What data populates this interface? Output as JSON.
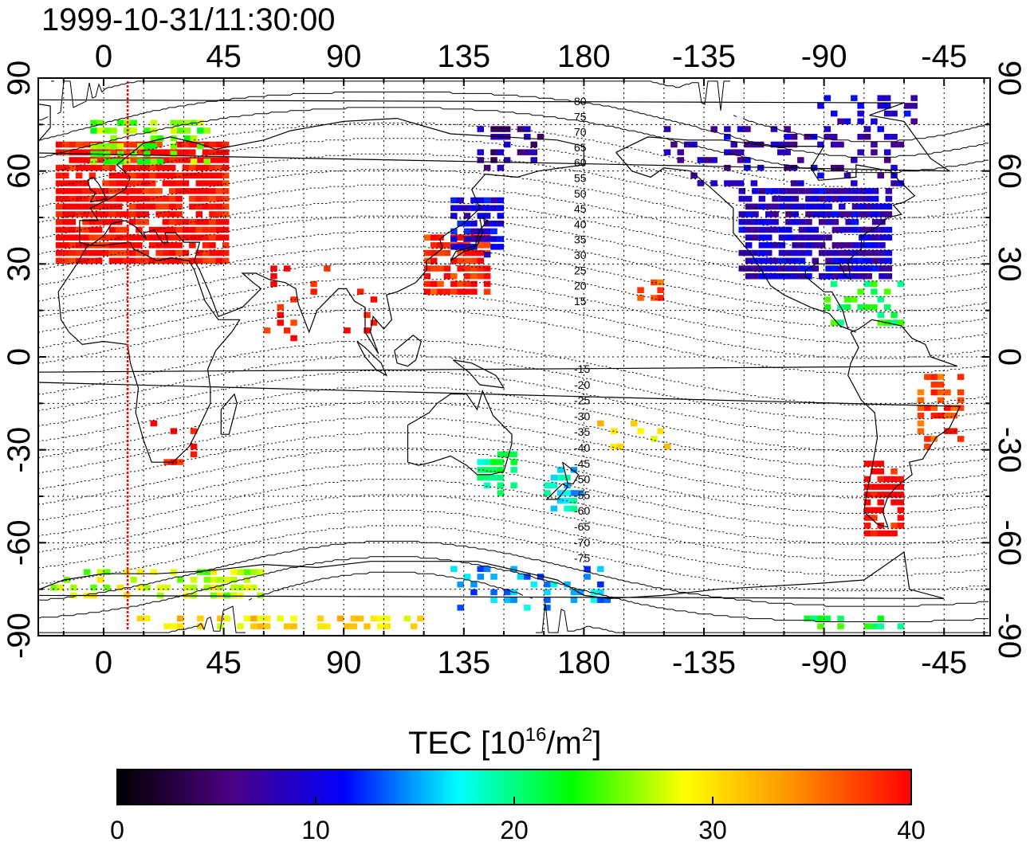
{
  "title": "1999-10-31/11:30:00",
  "x_ticks": [
    "0",
    "45",
    "90",
    "135",
    "180",
    "-135",
    "-90",
    "-45"
  ],
  "y_ticks": [
    "90",
    "60",
    "30",
    "0",
    "-30",
    "-60",
    "-90"
  ],
  "contour_labels_north": [
    "80",
    "75",
    "70",
    "65",
    "60",
    "55",
    "50",
    "45",
    "40",
    "35",
    "30",
    "25",
    "20",
    "15"
  ],
  "contour_labels_south": [
    "-15",
    "-20",
    "-25",
    "-30",
    "-35",
    "-40",
    "-45",
    "-50",
    "-55",
    "-60",
    "-65",
    "-70",
    "-75"
  ],
  "colorbar": {
    "label_main": "TEC  [10",
    "label_sup1": "16",
    "label_mid": "/m",
    "label_sup2": "2",
    "label_end": "]",
    "ticks": [
      "0",
      "10",
      "20",
      "30",
      "40"
    ],
    "min": 0,
    "max": 40,
    "colors": [
      "#000000",
      "#4b0082",
      "#0000ff",
      "#00ffff",
      "#00ff00",
      "#ffff00",
      "#ff8c00",
      "#ff0000"
    ]
  },
  "marker_longitude": 9,
  "clusters": [
    {
      "name": "europe",
      "lon": [
        -18,
        45
      ],
      "lat": [
        30,
        70
      ],
      "tec": 40,
      "density": 0.9
    },
    {
      "name": "north-scandinavia",
      "lon": [
        -5,
        40
      ],
      "lat": [
        62,
        76
      ],
      "tec": 25,
      "density": 0.5
    },
    {
      "name": "east-asia",
      "lon": [
        120,
        145
      ],
      "lat": [
        20,
        38
      ],
      "tec": 39,
      "density": 0.75
    },
    {
      "name": "japan-north",
      "lon": [
        130,
        150
      ],
      "lat": [
        32,
        52
      ],
      "tec": 10,
      "density": 0.75
    },
    {
      "name": "siberia-east",
      "lon": [
        140,
        165
      ],
      "lat": [
        60,
        75
      ],
      "tec": 7,
      "density": 0.35
    },
    {
      "name": "north-america",
      "lon": [
        -122,
        -65
      ],
      "lat": [
        25,
        55
      ],
      "tec": 9,
      "density": 0.85
    },
    {
      "name": "canada-north",
      "lon": [
        -150,
        -60
      ],
      "lat": [
        55,
        75
      ],
      "tec": 8,
      "density": 0.3
    },
    {
      "name": "arctic-canada",
      "lon": [
        -95,
        -55
      ],
      "lat": [
        75,
        85
      ],
      "tec": 9,
      "density": 0.3
    },
    {
      "name": "caribbean",
      "lon": [
        -90,
        -60
      ],
      "lat": [
        10,
        25
      ],
      "tec": 22,
      "density": 0.4
    },
    {
      "name": "hawaii",
      "lon": [
        -160,
        -150
      ],
      "lat": [
        18,
        25
      ],
      "tec": 36,
      "density": 0.6
    },
    {
      "name": "south-america-south",
      "lon": [
        -75,
        -60
      ],
      "lat": [
        -58,
        -35
      ],
      "tec": 40,
      "density": 0.7
    },
    {
      "name": "south-america-east",
      "lon": [
        -55,
        -38
      ],
      "lat": [
        -30,
        -5
      ],
      "tec": 37,
      "density": 0.5
    },
    {
      "name": "australia-east",
      "lon": [
        140,
        155
      ],
      "lat": [
        -45,
        -30
      ],
      "tec": 20,
      "density": 0.5
    },
    {
      "name": "new-zealand",
      "lon": [
        165,
        180
      ],
      "lat": [
        -50,
        -35
      ],
      "tec": 17,
      "density": 0.5
    },
    {
      "name": "antarctica-edge",
      "lon": [
        -20,
        60
      ],
      "lat": [
        -78,
        -70
      ],
      "tec": 27,
      "density": 0.5
    },
    {
      "name": "antarctic-south",
      "lon": [
        10,
        120
      ],
      "lat": [
        -88,
        -84
      ],
      "tec": 30,
      "density": 0.5
    },
    {
      "name": "indian-ocean",
      "lon": [
        60,
        105
      ],
      "lat": [
        5,
        30
      ],
      "tec": 40,
      "density": 0.12
    },
    {
      "name": "africa-south",
      "lon": [
        15,
        35
      ],
      "lat": [
        -35,
        -20
      ],
      "tec": 40,
      "density": 0.2
    },
    {
      "name": "pacific-south",
      "lon": [
        185,
        215
      ],
      "lat": [
        -30,
        -20
      ],
      "tec": 30,
      "density": 0.2
    },
    {
      "name": "antarctica-pacific",
      "lon": [
        130,
        190
      ],
      "lat": [
        -82,
        -68
      ],
      "tec": 15,
      "density": 0.25
    },
    {
      "name": "south-atlantic",
      "lon": [
        -100,
        -60
      ],
      "lat": [
        -88,
        -84
      ],
      "tec": 22,
      "density": 0.4
    }
  ]
}
